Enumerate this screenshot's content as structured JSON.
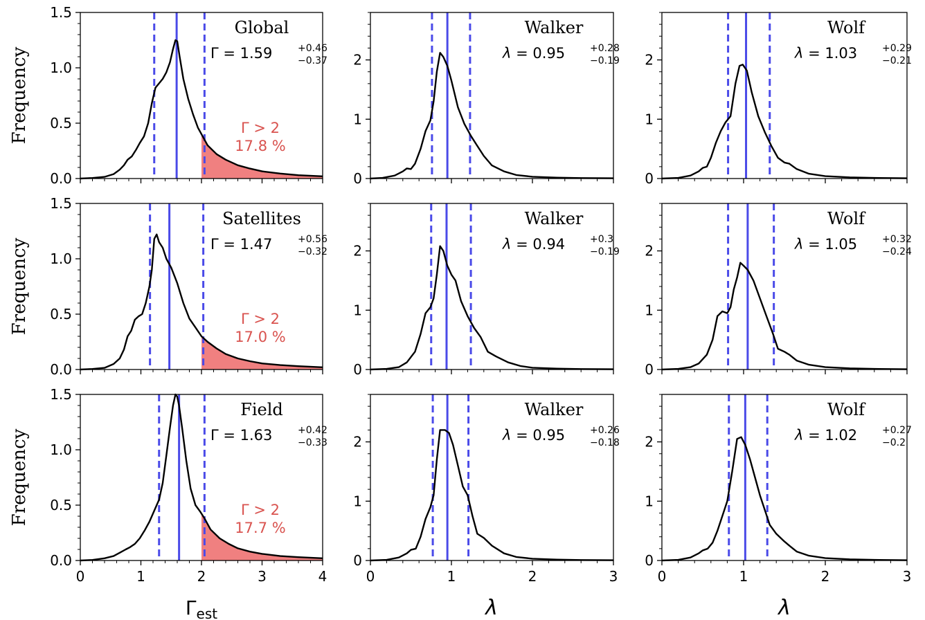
{
  "figure": {
    "ylabel": "Frequency",
    "xlabels": [
      "Γ_est",
      "λ",
      "λ"
    ]
  },
  "colors": {
    "curve": "#000000",
    "median_line": "#4a4ae8",
    "tail_fill": "#f08080",
    "tail_text": "#d9534f"
  },
  "chart_data": [
    {
      "type": "line",
      "row": 0,
      "col": 0,
      "title": "Global",
      "symbol": "Γ",
      "stat": {
        "value": "1.59",
        "plus": "+0.46",
        "minus": "−0.37"
      },
      "median": 1.59,
      "lower": 1.22,
      "upper": 2.05,
      "xlim": [
        0,
        4
      ],
      "ylim": [
        0,
        1.5
      ],
      "xticks": [
        0,
        1,
        2,
        3,
        4
      ],
      "yticks": [
        "0.0",
        "0.5",
        "1.0",
        "1.5"
      ],
      "tail": {
        "threshold": 2,
        "label": "Γ > 2",
        "percent": "17.8 %"
      },
      "x": [
        0,
        0.2,
        0.4,
        0.55,
        0.65,
        0.72,
        0.78,
        0.85,
        0.92,
        0.98,
        1.05,
        1.12,
        1.18,
        1.24,
        1.3,
        1.36,
        1.42,
        1.48,
        1.53,
        1.57,
        1.6,
        1.64,
        1.7,
        1.78,
        1.86,
        1.94,
        2.02,
        2.1,
        2.25,
        2.4,
        2.6,
        2.8,
        3.0,
        3.3,
        3.6,
        4.0
      ],
      "y": [
        0,
        0.005,
        0.015,
        0.04,
        0.08,
        0.12,
        0.17,
        0.2,
        0.26,
        0.32,
        0.38,
        0.5,
        0.68,
        0.82,
        0.86,
        0.9,
        0.96,
        1.05,
        1.17,
        1.25,
        1.24,
        1.1,
        0.9,
        0.72,
        0.58,
        0.46,
        0.38,
        0.3,
        0.22,
        0.17,
        0.12,
        0.09,
        0.065,
        0.045,
        0.03,
        0.02
      ]
    },
    {
      "type": "line",
      "row": 0,
      "col": 1,
      "title": "Walker",
      "symbol": "λ",
      "stat": {
        "value": "0.95",
        "plus": "+0.28",
        "minus": "−0.19"
      },
      "median": 0.95,
      "lower": 0.76,
      "upper": 1.23,
      "xlim": [
        0,
        3
      ],
      "ylim": [
        0,
        2.8
      ],
      "xticks": [
        0,
        1,
        2,
        3
      ],
      "yticks": [
        "0",
        "1",
        "2"
      ],
      "x": [
        0,
        0.15,
        0.3,
        0.4,
        0.45,
        0.5,
        0.55,
        0.62,
        0.68,
        0.74,
        0.78,
        0.82,
        0.86,
        0.9,
        0.95,
        1.0,
        1.08,
        1.16,
        1.24,
        1.32,
        1.4,
        1.5,
        1.65,
        1.8,
        2.0,
        2.3,
        2.6,
        3.0
      ],
      "y": [
        0,
        0.01,
        0.05,
        0.12,
        0.17,
        0.16,
        0.25,
        0.5,
        0.8,
        0.98,
        1.3,
        1.8,
        2.12,
        2.05,
        1.9,
        1.65,
        1.2,
        0.92,
        0.72,
        0.55,
        0.38,
        0.22,
        0.12,
        0.06,
        0.03,
        0.015,
        0.008,
        0.005
      ]
    },
    {
      "type": "line",
      "row": 0,
      "col": 2,
      "title": "Wolf",
      "symbol": "λ",
      "stat": {
        "value": "1.03",
        "plus": "+0.29",
        "minus": "−0.21"
      },
      "median": 1.03,
      "lower": 0.81,
      "upper": 1.32,
      "xlim": [
        0,
        3
      ],
      "ylim": [
        0,
        2.8
      ],
      "xticks": [
        0,
        1,
        2,
        3
      ],
      "yticks": [
        "0",
        "1",
        "2"
      ],
      "x": [
        0,
        0.2,
        0.35,
        0.45,
        0.5,
        0.55,
        0.6,
        0.66,
        0.72,
        0.78,
        0.84,
        0.9,
        0.95,
        0.99,
        1.04,
        1.1,
        1.18,
        1.26,
        1.34,
        1.42,
        1.5,
        1.56,
        1.65,
        1.8,
        2.0,
        2.3,
        2.6,
        3.0
      ],
      "y": [
        0,
        0.01,
        0.05,
        0.12,
        0.18,
        0.2,
        0.35,
        0.6,
        0.8,
        0.95,
        1.05,
        1.6,
        1.9,
        1.92,
        1.82,
        1.45,
        1.05,
        0.78,
        0.55,
        0.35,
        0.27,
        0.25,
        0.16,
        0.08,
        0.04,
        0.02,
        0.01,
        0.005
      ]
    },
    {
      "type": "line",
      "row": 1,
      "col": 0,
      "title": "Satellites",
      "symbol": "Γ",
      "stat": {
        "value": "1.47",
        "plus": "+0.56",
        "minus": "−0.32"
      },
      "median": 1.47,
      "lower": 1.15,
      "upper": 2.03,
      "xlim": [
        0,
        4
      ],
      "ylim": [
        0,
        1.5
      ],
      "xticks": [
        0,
        1,
        2,
        3,
        4
      ],
      "yticks": [
        "0.0",
        "0.5",
        "1.0",
        "1.5"
      ],
      "tail": {
        "threshold": 2,
        "label": "Γ > 2",
        "percent": "17.0 %"
      },
      "x": [
        0,
        0.2,
        0.4,
        0.55,
        0.65,
        0.72,
        0.78,
        0.84,
        0.9,
        0.96,
        1.02,
        1.08,
        1.14,
        1.18,
        1.22,
        1.26,
        1.3,
        1.36,
        1.42,
        1.5,
        1.6,
        1.7,
        1.8,
        1.9,
        2.0,
        2.1,
        2.25,
        2.4,
        2.6,
        2.8,
        3.0,
        3.3,
        3.6,
        4.0
      ],
      "y": [
        0,
        0.005,
        0.015,
        0.05,
        0.1,
        0.18,
        0.3,
        0.35,
        0.45,
        0.48,
        0.5,
        0.6,
        0.75,
        0.9,
        1.18,
        1.22,
        1.15,
        1.1,
        1.0,
        0.92,
        0.78,
        0.6,
        0.46,
        0.38,
        0.3,
        0.25,
        0.19,
        0.14,
        0.1,
        0.075,
        0.055,
        0.04,
        0.03,
        0.02
      ]
    },
    {
      "type": "line",
      "row": 1,
      "col": 1,
      "title": "Walker",
      "symbol": "λ",
      "stat": {
        "value": "0.94",
        "plus": "+0.3",
        "minus": "−0.19"
      },
      "median": 0.94,
      "lower": 0.75,
      "upper": 1.24,
      "xlim": [
        0,
        3
      ],
      "ylim": [
        0,
        2.8
      ],
      "xticks": [
        0,
        1,
        2,
        3
      ],
      "yticks": [
        "0",
        "1",
        "2"
      ],
      "x": [
        0,
        0.2,
        0.35,
        0.45,
        0.55,
        0.62,
        0.68,
        0.74,
        0.78,
        0.82,
        0.86,
        0.9,
        0.95,
        1.0,
        1.05,
        1.12,
        1.2,
        1.28,
        1.36,
        1.45,
        1.55,
        1.7,
        1.85,
        2.0,
        2.3,
        2.6,
        3.0
      ],
      "y": [
        0,
        0.01,
        0.04,
        0.12,
        0.3,
        0.6,
        0.95,
        1.05,
        1.2,
        1.6,
        2.08,
        2.0,
        1.75,
        1.6,
        1.5,
        1.15,
        0.9,
        0.7,
        0.55,
        0.3,
        0.22,
        0.12,
        0.06,
        0.03,
        0.015,
        0.008,
        0.005
      ]
    },
    {
      "type": "line",
      "row": 1,
      "col": 2,
      "title": "Wolf",
      "symbol": "λ",
      "stat": {
        "value": "1.05",
        "plus": "+0.32",
        "minus": "−0.24"
      },
      "median": 1.05,
      "lower": 0.81,
      "upper": 1.37,
      "xlim": [
        0,
        3
      ],
      "ylim": [
        0,
        2.8
      ],
      "xticks": [
        0,
        1,
        2,
        3
      ],
      "yticks": [
        "0",
        "1",
        "2"
      ],
      "x": [
        0,
        0.2,
        0.35,
        0.45,
        0.55,
        0.62,
        0.68,
        0.74,
        0.8,
        0.84,
        0.88,
        0.92,
        0.96,
        1.0,
        1.05,
        1.12,
        1.2,
        1.28,
        1.36,
        1.42,
        1.5,
        1.56,
        1.65,
        1.8,
        2.0,
        2.3,
        2.6,
        3.0
      ],
      "y": [
        0,
        0.01,
        0.04,
        0.1,
        0.25,
        0.5,
        0.9,
        0.98,
        0.95,
        1.05,
        1.35,
        1.55,
        1.8,
        1.75,
        1.68,
        1.5,
        1.2,
        0.9,
        0.6,
        0.35,
        0.3,
        0.25,
        0.15,
        0.08,
        0.04,
        0.02,
        0.01,
        0.005
      ]
    },
    {
      "type": "line",
      "row": 2,
      "col": 0,
      "title": "Field",
      "symbol": "Γ",
      "stat": {
        "value": "1.63",
        "plus": "+0.42",
        "minus": "−0.33"
      },
      "median": 1.63,
      "lower": 1.3,
      "upper": 2.05,
      "xlim": [
        0,
        4
      ],
      "ylim": [
        0,
        1.5
      ],
      "xticks": [
        0,
        1,
        2,
        3,
        4
      ],
      "yticks": [
        "0.0",
        "0.5",
        "1.0",
        "1.5"
      ],
      "tail": {
        "threshold": 2,
        "label": "Γ > 2",
        "percent": "17.7 %"
      },
      "x": [
        0,
        0.2,
        0.4,
        0.55,
        0.65,
        0.75,
        0.82,
        0.9,
        0.98,
        1.06,
        1.14,
        1.22,
        1.3,
        1.36,
        1.42,
        1.48,
        1.53,
        1.57,
        1.6,
        1.63,
        1.68,
        1.75,
        1.82,
        1.9,
        1.98,
        2.05,
        2.15,
        2.3,
        2.45,
        2.6,
        2.8,
        3.0,
        3.3,
        3.6,
        4.0
      ],
      "y": [
        0,
        0.005,
        0.02,
        0.04,
        0.07,
        0.1,
        0.12,
        0.15,
        0.2,
        0.27,
        0.35,
        0.45,
        0.55,
        0.7,
        0.95,
        1.2,
        1.4,
        1.5,
        1.48,
        1.4,
        1.2,
        0.9,
        0.65,
        0.5,
        0.44,
        0.38,
        0.28,
        0.2,
        0.15,
        0.11,
        0.08,
        0.06,
        0.04,
        0.03,
        0.02
      ]
    },
    {
      "type": "line",
      "row": 2,
      "col": 1,
      "title": "Walker",
      "symbol": "λ",
      "stat": {
        "value": "0.95",
        "plus": "+0.26",
        "minus": "−0.18"
      },
      "median": 0.95,
      "lower": 0.77,
      "upper": 1.21,
      "xlim": [
        0,
        3
      ],
      "ylim": [
        0,
        2.8
      ],
      "xticks": [
        0,
        1,
        2,
        3
      ],
      "yticks": [
        "0",
        "1",
        "2"
      ],
      "x": [
        0,
        0.2,
        0.35,
        0.45,
        0.5,
        0.56,
        0.62,
        0.68,
        0.74,
        0.78,
        0.82,
        0.86,
        0.92,
        0.97,
        1.02,
        1.08,
        1.14,
        1.2,
        1.26,
        1.32,
        1.4,
        1.5,
        1.65,
        1.8,
        2.0,
        2.3,
        2.6,
        3.0
      ],
      "y": [
        0,
        0.01,
        0.05,
        0.12,
        0.18,
        0.2,
        0.4,
        0.7,
        0.9,
        1.1,
        1.7,
        2.2,
        2.2,
        2.15,
        1.95,
        1.6,
        1.25,
        1.1,
        0.75,
        0.45,
        0.38,
        0.25,
        0.12,
        0.06,
        0.03,
        0.015,
        0.008,
        0.005
      ]
    },
    {
      "type": "line",
      "row": 2,
      "col": 2,
      "title": "Wolf",
      "symbol": "λ",
      "stat": {
        "value": "1.02",
        "plus": "+0.27",
        "minus": "−0.2"
      },
      "median": 1.02,
      "lower": 0.82,
      "upper": 1.29,
      "xlim": [
        0,
        3
      ],
      "ylim": [
        0,
        2.8
      ],
      "xticks": [
        0,
        1,
        2,
        3
      ],
      "yticks": [
        "0",
        "1",
        "2"
      ],
      "x": [
        0,
        0.2,
        0.35,
        0.45,
        0.5,
        0.56,
        0.62,
        0.68,
        0.74,
        0.8,
        0.86,
        0.92,
        0.97,
        1.02,
        1.08,
        1.14,
        1.2,
        1.26,
        1.32,
        1.4,
        1.5,
        1.56,
        1.65,
        1.8,
        2.0,
        2.3,
        2.6,
        3.0
      ],
      "y": [
        0,
        0.01,
        0.05,
        0.12,
        0.17,
        0.2,
        0.3,
        0.5,
        0.75,
        1.0,
        1.5,
        2.05,
        2.08,
        1.95,
        1.7,
        1.4,
        1.1,
        0.85,
        0.6,
        0.45,
        0.32,
        0.25,
        0.15,
        0.08,
        0.04,
        0.02,
        0.01,
        0.005
      ]
    }
  ]
}
